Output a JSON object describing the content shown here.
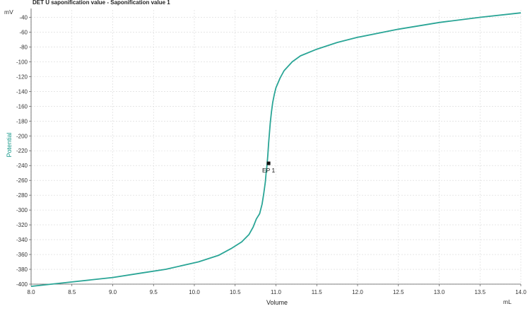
{
  "chart_data": {
    "type": "line",
    "title": "DET U saponification value - Saponification value  1",
    "xlabel": "Volume",
    "ylabel": "Potential",
    "x_unit": "mL",
    "y_unit": "mV",
    "xlim": [
      8.0,
      14.0
    ],
    "ylim": [
      -400,
      -30
    ],
    "grid": true,
    "x_ticks": [
      "8.0",
      "8.5",
      "9.0",
      "9.5",
      "10.0",
      "10.5",
      "11.0",
      "11.5",
      "12.0",
      "12.5",
      "13.0",
      "13.5",
      "14.0"
    ],
    "y_ticks": [
      "-40",
      "-60",
      "-80",
      "-100",
      "-120",
      "-140",
      "-160",
      "-180",
      "-200",
      "-220",
      "-240",
      "-260",
      "-280",
      "-300",
      "-320",
      "-340",
      "-360",
      "-380",
      "-400"
    ],
    "series": [
      {
        "color": "#2aa596",
        "x": [
          8.0,
          8.5,
          9.0,
          9.35,
          9.65,
          10.05,
          10.3,
          10.45,
          10.58,
          10.67,
          10.72,
          10.76,
          10.8,
          10.83,
          10.85,
          10.87,
          10.88,
          10.89,
          10.9,
          10.91,
          10.92,
          10.93,
          10.945,
          10.96,
          10.98,
          11.0,
          11.05,
          11.1,
          11.2,
          11.3,
          11.5,
          11.75,
          12.0,
          12.5,
          13.0,
          13.5,
          14.0
        ],
        "y": [
          -403,
          -397,
          -391,
          -385,
          -380,
          -370,
          -361,
          -352,
          -343,
          -333,
          -323,
          -312,
          -305,
          -292,
          -278,
          -262,
          -250,
          -240,
          -226,
          -210,
          -196,
          -183,
          -168,
          -155,
          -144,
          -135,
          -122,
          -112,
          -100,
          -92,
          -83,
          -74,
          -67,
          -56,
          -47,
          -40,
          -34
        ]
      }
    ],
    "annotations": [
      {
        "label": "EP 1",
        "x": 10.91,
        "y": -237
      }
    ]
  }
}
